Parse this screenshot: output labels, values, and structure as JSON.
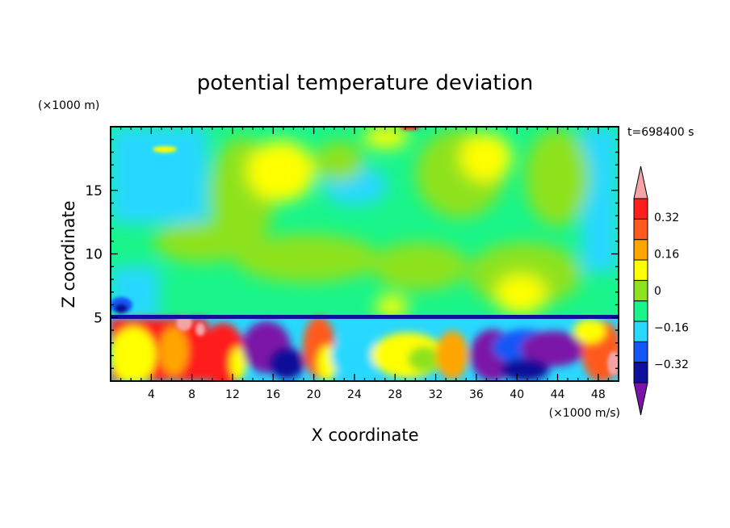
{
  "chart_data": {
    "type": "heatmap",
    "title": "potential temperature deviation",
    "xlabel": "X coordinate",
    "ylabel": "Z coordinate",
    "x_unit": "(×1000 m/s)",
    "y_unit": "(×1000 m)",
    "time_label": "t=698400 s",
    "xlim": [
      0,
      50
    ],
    "ylim": [
      0,
      20
    ],
    "x_ticks": [
      4,
      8,
      12,
      16,
      20,
      24,
      28,
      32,
      36,
      40,
      44,
      48
    ],
    "x_tick_labels": [
      "4",
      "8",
      "12",
      "16",
      "20",
      "24",
      "28",
      "32",
      "36",
      "40",
      "44",
      "48"
    ],
    "y_ticks": [
      5,
      10,
      15
    ],
    "y_tick_labels": [
      "5",
      "10",
      "15"
    ],
    "colorbar": {
      "levels": [
        -0.4,
        -0.32,
        -0.24,
        -0.16,
        -0.08,
        0,
        0.08,
        0.16,
        0.24,
        0.32,
        0.4
      ],
      "labeled_ticks": [
        -0.32,
        -0.16,
        0,
        0.16,
        0.32
      ],
      "tick_labels": [
        "−0.32",
        "−0.16",
        "0",
        "0.16",
        "0.32"
      ],
      "colors": [
        "#7b13a8",
        "#10109a",
        "#1457f5",
        "#28d8ff",
        "#19f58a",
        "#8ee21f",
        "#ffff00",
        "#ffa500",
        "#ff5a1e",
        "#ff1e1e",
        "#f4a4a4"
      ]
    }
  }
}
